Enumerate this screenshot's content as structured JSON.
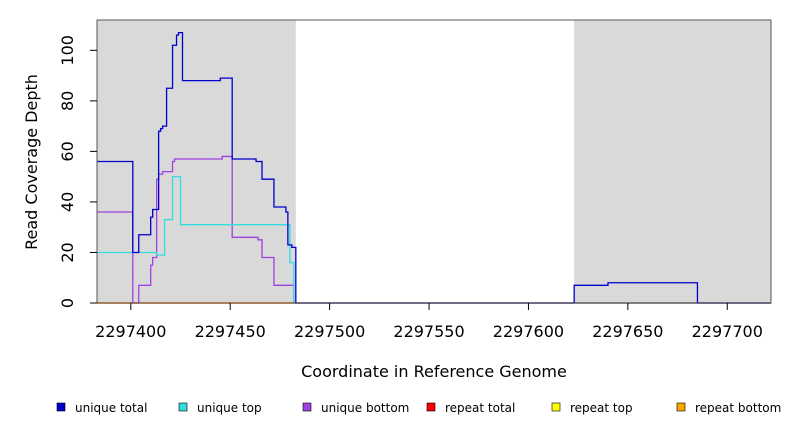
{
  "chart_data": {
    "type": "line",
    "xlabel": "Coordinate in Reference Genome",
    "ylabel": "Read Coverage Depth",
    "xlim": [
      2297383,
      2297722
    ],
    "ylim": [
      0,
      112
    ],
    "x_ticks": [
      2297400,
      2297450,
      2297500,
      2297550,
      2297600,
      2297650,
      2297700
    ],
    "x_tick_labels": [
      "2297400",
      "2297450",
      "2297500",
      "2297550",
      "2297600",
      "2297650",
      "2297700"
    ],
    "y_ticks": [
      0,
      20,
      40,
      60,
      80,
      100
    ],
    "y_tick_labels": [
      "0",
      "20",
      "40",
      "60",
      "80",
      "100"
    ],
    "shaded_regions": [
      [
        2297383,
        2297483
      ],
      [
        2297623,
        2297722
      ]
    ],
    "shade_color": "#d9d9d9",
    "legend_position": "bottom",
    "series": [
      {
        "name": "unique total",
        "color": "#0000cc",
        "steps": [
          [
            2297383,
            56
          ],
          [
            2297401,
            20
          ],
          [
            2297404,
            27
          ],
          [
            2297410,
            34
          ],
          [
            2297411,
            37
          ],
          [
            2297414,
            68
          ],
          [
            2297415,
            69
          ],
          [
            2297416,
            70
          ],
          [
            2297418,
            85
          ],
          [
            2297421,
            102
          ],
          [
            2297423,
            106
          ],
          [
            2297424,
            107
          ],
          [
            2297426,
            88
          ],
          [
            2297445,
            89
          ],
          [
            2297451,
            57
          ],
          [
            2297463,
            56
          ],
          [
            2297466,
            49
          ],
          [
            2297472,
            38
          ],
          [
            2297478,
            36
          ],
          [
            2297479,
            23
          ],
          [
            2297481,
            22
          ],
          [
            2297483,
            0
          ],
          [
            2297623,
            7
          ],
          [
            2297640,
            8
          ],
          [
            2297685,
            0
          ],
          [
            2297722,
            0
          ]
        ]
      },
      {
        "name": "unique top",
        "color": "#33dddd",
        "steps": [
          [
            2297383,
            20
          ],
          [
            2297413,
            19
          ],
          [
            2297417,
            33
          ],
          [
            2297421,
            50
          ],
          [
            2297425,
            31
          ],
          [
            2297478,
            31
          ],
          [
            2297480,
            16
          ],
          [
            2297482,
            0
          ],
          [
            2297722,
            0
          ]
        ]
      },
      {
        "name": "unique bottom",
        "color": "#a040e0",
        "steps": [
          [
            2297383,
            36
          ],
          [
            2297401,
            0
          ],
          [
            2297404,
            7
          ],
          [
            2297410,
            15
          ],
          [
            2297411,
            18
          ],
          [
            2297413,
            49
          ],
          [
            2297414,
            51
          ],
          [
            2297416,
            52
          ],
          [
            2297421,
            56
          ],
          [
            2297422,
            57
          ],
          [
            2297446,
            58
          ],
          [
            2297451,
            26
          ],
          [
            2297464,
            25
          ],
          [
            2297466,
            18
          ],
          [
            2297472,
            7
          ],
          [
            2297482,
            0
          ],
          [
            2297722,
            0
          ]
        ]
      },
      {
        "name": "repeat total",
        "color": "#ff0000",
        "steps": [
          [
            2297383,
            0
          ],
          [
            2297722,
            0
          ]
        ]
      },
      {
        "name": "repeat top",
        "color": "#ffff00",
        "steps": [
          [
            2297383,
            0
          ],
          [
            2297722,
            0
          ]
        ]
      },
      {
        "name": "repeat bottom",
        "color": "#ffa500",
        "steps": [
          [
            2297383,
            0
          ],
          [
            2297483,
            0
          ]
        ]
      }
    ]
  }
}
